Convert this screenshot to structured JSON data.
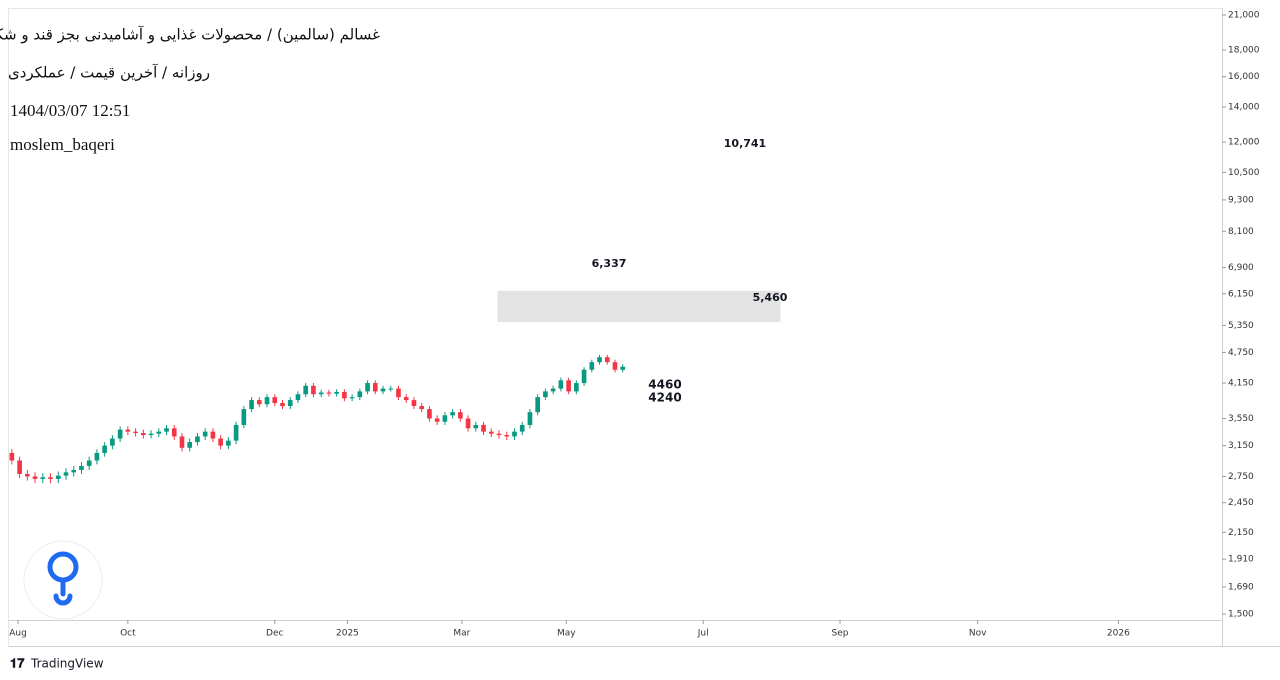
{
  "header": {
    "title": "غسالم (سالمین) / محصولات غذایی و آشامیدنی بجز قند و شکر",
    "subtitle": "روزانه / آخرین قیمت / عملکردی",
    "date": "1404/03/07 12:51",
    "author": "moslem_baqeri"
  },
  "footer": {
    "brand": "TradingView"
  },
  "chart_data": {
    "type": "candlestick",
    "log_scale": true,
    "up_color": "#089981",
    "down_color": "#f23645",
    "xlim": [
      -0.5,
      156.5
    ],
    "ylim": [
      1461,
      21660
    ],
    "xticks": [
      {
        "value": 0.8,
        "label": "Aug"
      },
      {
        "value": 15.0,
        "label": "Oct"
      },
      {
        "value": 34.0,
        "label": "Dec"
      },
      {
        "value": 43.4,
        "label": "2025"
      },
      {
        "value": 58.2,
        "label": "Mar"
      },
      {
        "value": 71.7,
        "label": "May"
      },
      {
        "value": 89.4,
        "label": "Jul"
      },
      {
        "value": 107.1,
        "label": "Sep"
      },
      {
        "value": 124.9,
        "label": "Nov"
      },
      {
        "value": 143.1,
        "label": "2026"
      }
    ],
    "yticks": [
      {
        "value": 21000,
        "label": "21,000"
      },
      {
        "value": 18000,
        "label": "18,000"
      },
      {
        "value": 16000,
        "label": "16,000"
      },
      {
        "value": 14000,
        "label": "14,000"
      },
      {
        "value": 12000,
        "label": "12,000"
      },
      {
        "value": 10500,
        "label": "10,500"
      },
      {
        "value": 9300,
        "label": "9,300"
      },
      {
        "value": 8100,
        "label": "8,100"
      },
      {
        "value": 6900,
        "label": "6,900"
      },
      {
        "value": 6150,
        "label": "6,150"
      },
      {
        "value": 5350,
        "label": "5,350"
      },
      {
        "value": 4750,
        "label": "4,750"
      },
      {
        "value": 4150,
        "label": "4,150"
      },
      {
        "value": 3550,
        "label": "3,550"
      },
      {
        "value": 3150,
        "label": "3,150"
      },
      {
        "value": 2750,
        "label": "2,750"
      },
      {
        "value": 2450,
        "label": "2,450"
      },
      {
        "value": 2150,
        "label": "2,150"
      },
      {
        "value": 1910,
        "label": "1,910"
      },
      {
        "value": 1690,
        "label": "1,690"
      },
      {
        "value": 1500,
        "label": "1,500"
      }
    ],
    "x": [
      0,
      1,
      2,
      3,
      4,
      5,
      6,
      7,
      8,
      9,
      10,
      11,
      12,
      13,
      14,
      15,
      16,
      17,
      18,
      19,
      20,
      21,
      22,
      23,
      24,
      25,
      26,
      27,
      28,
      29,
      30,
      31,
      32,
      33,
      34,
      35,
      36,
      37,
      38,
      39,
      40,
      41,
      42,
      43,
      44,
      45,
      46,
      47,
      48,
      49,
      50,
      51,
      52,
      53,
      54,
      55,
      56,
      57,
      58,
      59,
      60,
      61,
      62,
      63,
      64,
      65,
      66,
      67,
      68,
      69,
      70,
      71,
      72,
      73,
      74,
      75,
      76,
      77,
      78,
      79
    ],
    "open": [
      3050,
      2950,
      2780,
      2750,
      2720,
      2740,
      2720,
      2760,
      2800,
      2830,
      2880,
      2950,
      3050,
      3150,
      3250,
      3380,
      3350,
      3330,
      3300,
      3320,
      3350,
      3400,
      3280,
      3120,
      3200,
      3280,
      3350,
      3250,
      3150,
      3220,
      3450,
      3700,
      3850,
      3780,
      3900,
      3800,
      3750,
      3850,
      3950,
      4100,
      3950,
      3980,
      3960,
      3990,
      3880,
      3900,
      4000,
      4150,
      4000,
      4050,
      4050,
      3900,
      3850,
      3750,
      3700,
      3550,
      3500,
      3600,
      3650,
      3550,
      3400,
      3450,
      3350,
      3320,
      3300,
      3280,
      3350,
      3450,
      3650,
      3900,
      4000,
      4050,
      4200,
      4000,
      4150,
      4400,
      4550,
      4650,
      4550,
      4400
    ],
    "high": [
      3100,
      3000,
      2830,
      2800,
      2790,
      2790,
      2810,
      2850,
      2880,
      2930,
      3000,
      3100,
      3200,
      3300,
      3430,
      3430,
      3400,
      3380,
      3370,
      3400,
      3450,
      3450,
      3330,
      3250,
      3330,
      3400,
      3400,
      3300,
      3270,
      3500,
      3750,
      3900,
      3900,
      3950,
      3950,
      3850,
      3900,
      4000,
      4150,
      4150,
      4030,
      4030,
      4040,
      4040,
      3950,
      4050,
      4200,
      4200,
      4100,
      4100,
      4100,
      3950,
      3900,
      3800,
      3750,
      3600,
      3650,
      3700,
      3700,
      3600,
      3500,
      3500,
      3400,
      3370,
      3350,
      3400,
      3500,
      3700,
      3950,
      4050,
      4100,
      4250,
      4250,
      4200,
      4450,
      4600,
      4700,
      4700,
      4600,
      4510
    ],
    "low": [
      2900,
      2730,
      2700,
      2670,
      2670,
      2670,
      2670,
      2710,
      2750,
      2780,
      2830,
      2900,
      3000,
      3100,
      3200,
      3300,
      3280,
      3250,
      3250,
      3270,
      3300,
      3230,
      3070,
      3070,
      3150,
      3230,
      3200,
      3100,
      3100,
      3170,
      3400,
      3650,
      3730,
      3730,
      3750,
      3700,
      3700,
      3800,
      3900,
      3900,
      3900,
      3910,
      3910,
      3830,
      3830,
      3850,
      3950,
      3950,
      3950,
      4000,
      3850,
      3800,
      3700,
      3650,
      3500,
      3450,
      3450,
      3550,
      3500,
      3350,
      3350,
      3300,
      3270,
      3250,
      3230,
      3230,
      3300,
      3400,
      3600,
      3850,
      3950,
      4000,
      3950,
      3950,
      4100,
      4350,
      4500,
      4500,
      4350,
      4350
    ],
    "close": [
      2950,
      2780,
      2750,
      2720,
      2740,
      2720,
      2760,
      2800,
      2830,
      2880,
      2950,
      3050,
      3150,
      3250,
      3380,
      3350,
      3330,
      3300,
      3320,
      3350,
      3400,
      3280,
      3120,
      3200,
      3280,
      3350,
      3250,
      3150,
      3220,
      3450,
      3700,
      3850,
      3780,
      3900,
      3800,
      3750,
      3850,
      3950,
      4100,
      3950,
      3980,
      3960,
      3990,
      3880,
      3900,
      4000,
      4150,
      4000,
      4050,
      4050,
      3900,
      3850,
      3750,
      3700,
      3550,
      3500,
      3600,
      3650,
      3550,
      3400,
      3450,
      3350,
      3320,
      3300,
      3280,
      3350,
      3450,
      3650,
      3900,
      4000,
      4050,
      4200,
      4000,
      4150,
      4400,
      4550,
      4650,
      4550,
      4400,
      4460
    ],
    "zone": {
      "x": [
        62.8,
        99.4
      ],
      "y": [
        5430,
        6230
      ]
    },
    "annotations": [
      "10,741",
      "6,337",
      "5,460",
      "4460",
      "4240"
    ]
  }
}
